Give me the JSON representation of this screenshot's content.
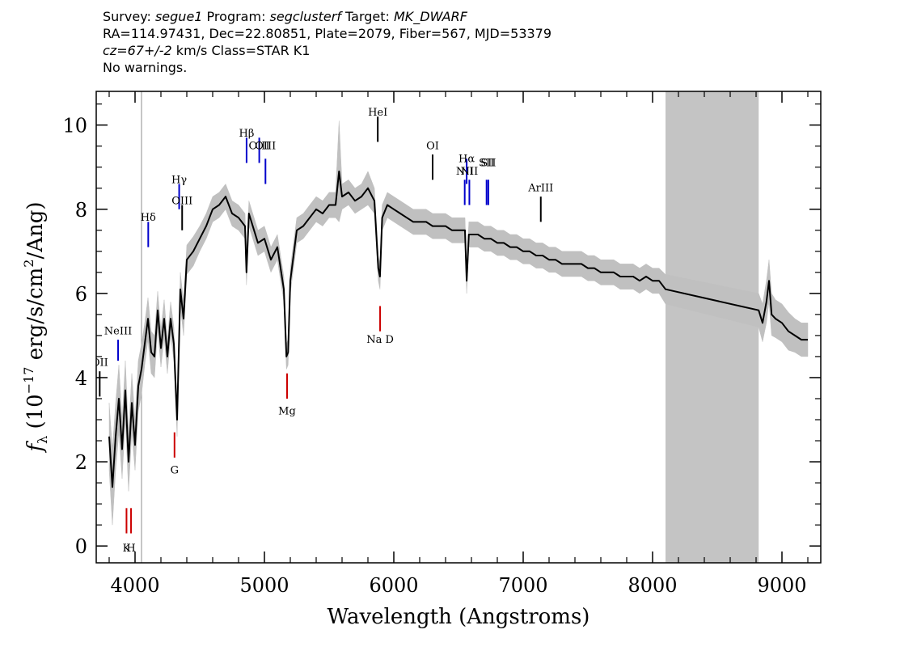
{
  "header": {
    "line1": {
      "survey_label": "Survey: ",
      "survey": "segue1",
      "program_label": " Program: ",
      "program": "segclusterf",
      "target_label": " Target: ",
      "target": "MK_DWARF"
    },
    "line2": "RA=114.97431, Dec=22.80851, Plate=2079, Fiber=567, MJD=53379",
    "line3": {
      "cz": "cz=67+/-2",
      "rest": " km/s Class=STAR K1"
    },
    "line4": "No warnings."
  },
  "colors": {
    "flux": "#000000",
    "error_band": "#c0c0c0",
    "masked_region": "#c4c4c4",
    "emission_line": "#0000cc",
    "absorption_line": "#cc0000",
    "other_line": "#000000"
  },
  "chart_data": {
    "type": "line",
    "xlabel": "Wavelength (Angstroms)",
    "ylabel_main": "f",
    "ylabel_sub": "λ",
    "ylabel_rest": " (10",
    "ylabel_exp": "−17",
    "ylabel_units": " erg/s/cm",
    "ylabel_exp2": "2",
    "ylabel_end": "/Ang)",
    "xlim": [
      3700,
      9300
    ],
    "ylim": [
      -0.4,
      10.8
    ],
    "xticks": [
      4000,
      5000,
      6000,
      7000,
      8000,
      9000
    ],
    "xtick_labels": [
      "4000",
      "5000",
      "6000",
      "7000",
      "8000",
      "9000"
    ],
    "yticks": [
      0,
      2,
      4,
      6,
      8,
      10
    ],
    "ytick_labels": [
      "0",
      "2",
      "4",
      "6",
      "8",
      "10"
    ],
    "masked_region": [
      8100,
      8820
    ],
    "vertical_line_x": 4050,
    "spectrum": {
      "x": [
        3800,
        3825,
        3850,
        3875,
        3900,
        3925,
        3950,
        3975,
        4000,
        4025,
        4050,
        4075,
        4100,
        4125,
        4150,
        4175,
        4200,
        4225,
        4250,
        4275,
        4300,
        4325,
        4350,
        4375,
        4400,
        4450,
        4500,
        4550,
        4600,
        4650,
        4700,
        4750,
        4800,
        4850,
        4861,
        4880,
        4900,
        4950,
        5000,
        5050,
        5100,
        5150,
        5170,
        5183,
        5200,
        5250,
        5300,
        5350,
        5400,
        5450,
        5500,
        5550,
        5577,
        5600,
        5650,
        5700,
        5750,
        5800,
        5850,
        5880,
        5893,
        5910,
        5950,
        6000,
        6050,
        6100,
        6150,
        6200,
        6250,
        6300,
        6350,
        6400,
        6450,
        6500,
        6550,
        6563,
        6580,
        6600,
        6650,
        6700,
        6750,
        6800,
        6850,
        6900,
        6950,
        7000,
        7050,
        7100,
        7150,
        7200,
        7250,
        7300,
        7350,
        7400,
        7450,
        7500,
        7550,
        7600,
        7650,
        7700,
        7750,
        7800,
        7850,
        7900,
        7950,
        8000,
        8050,
        8100,
        8820,
        8850,
        8880,
        8900,
        8920,
        8950,
        9000,
        9050,
        9100,
        9150,
        9200
      ],
      "y": [
        2.6,
        1.4,
        2.6,
        3.5,
        2.3,
        3.7,
        2.0,
        3.4,
        2.4,
        3.8,
        4.2,
        4.8,
        5.4,
        4.6,
        4.5,
        5.6,
        4.7,
        5.4,
        4.5,
        5.4,
        4.8,
        3.0,
        6.1,
        5.4,
        6.8,
        7.0,
        7.3,
        7.6,
        8.0,
        8.1,
        8.3,
        7.9,
        7.8,
        7.6,
        6.5,
        7.9,
        7.7,
        7.2,
        7.3,
        6.8,
        7.1,
        6.1,
        4.5,
        4.6,
        6.3,
        7.5,
        7.6,
        7.8,
        8.0,
        7.9,
        8.1,
        8.1,
        8.9,
        8.3,
        8.4,
        8.2,
        8.3,
        8.5,
        8.2,
        6.6,
        6.4,
        7.8,
        8.1,
        8.0,
        7.9,
        7.8,
        7.7,
        7.7,
        7.7,
        7.6,
        7.6,
        7.6,
        7.5,
        7.5,
        7.5,
        6.3,
        7.4,
        7.4,
        7.4,
        7.3,
        7.3,
        7.2,
        7.2,
        7.1,
        7.1,
        7.0,
        7.0,
        6.9,
        6.9,
        6.8,
        6.8,
        6.7,
        6.7,
        6.7,
        6.7,
        6.6,
        6.6,
        6.5,
        6.5,
        6.5,
        6.4,
        6.4,
        6.4,
        6.3,
        6.4,
        6.3,
        6.3,
        6.1,
        5.6,
        5.3,
        5.8,
        6.3,
        5.5,
        5.4,
        5.3,
        5.1,
        5.0,
        4.9,
        4.9
      ],
      "error": [
        0.8,
        0.9,
        0.8,
        0.8,
        0.7,
        0.7,
        0.7,
        0.7,
        0.6,
        0.6,
        0.6,
        0.5,
        0.5,
        0.5,
        0.5,
        0.45,
        0.45,
        0.45,
        0.4,
        0.4,
        0.4,
        0.4,
        0.4,
        0.4,
        0.35,
        0.35,
        0.3,
        0.3,
        0.3,
        0.3,
        0.3,
        0.3,
        0.3,
        0.3,
        0.3,
        0.3,
        0.3,
        0.3,
        0.3,
        0.3,
        0.3,
        0.3,
        0.3,
        0.3,
        0.3,
        0.3,
        0.3,
        0.3,
        0.3,
        0.3,
        0.3,
        0.3,
        1.2,
        0.3,
        0.3,
        0.3,
        0.3,
        0.4,
        0.3,
        0.3,
        0.3,
        0.3,
        0.3,
        0.3,
        0.3,
        0.3,
        0.3,
        0.3,
        0.3,
        0.3,
        0.3,
        0.3,
        0.3,
        0.3,
        0.3,
        0.3,
        0.3,
        0.3,
        0.3,
        0.3,
        0.3,
        0.3,
        0.3,
        0.3,
        0.3,
        0.3,
        0.3,
        0.3,
        0.3,
        0.3,
        0.3,
        0.3,
        0.3,
        0.3,
        0.3,
        0.3,
        0.3,
        0.3,
        0.3,
        0.3,
        0.3,
        0.3,
        0.3,
        0.3,
        0.3,
        0.3,
        0.3,
        0.35,
        0.4,
        0.45,
        0.5,
        0.5,
        0.5,
        0.45,
        0.45,
        0.45,
        0.4,
        0.4,
        0.4
      ]
    },
    "lines": [
      {
        "label": "OII",
        "x": 3727,
        "y_label": 4.35,
        "y_top": 4.15,
        "y_bot": 3.55,
        "kind": "other"
      },
      {
        "label": "NeIII",
        "x": 3869,
        "y_label": 5.1,
        "y_top": 4.9,
        "y_bot": 4.4,
        "kind": "emission"
      },
      {
        "label": "K",
        "x": 3934,
        "y_label": -0.05,
        "y_top": 0.9,
        "y_bot": 0.3,
        "kind": "absorption"
      },
      {
        "label": "H",
        "x": 3969,
        "y_label": -0.05,
        "y_top": 0.9,
        "y_bot": 0.3,
        "kind": "absorption"
      },
      {
        "label": "Hδ",
        "x": 4102,
        "y_label": 7.8,
        "y_top": 7.7,
        "y_bot": 7.1,
        "kind": "emission"
      },
      {
        "label": "G",
        "x": 4305,
        "y_label": 1.8,
        "y_top": 2.7,
        "y_bot": 2.1,
        "kind": "absorption"
      },
      {
        "label": "Hγ",
        "x": 4341,
        "y_label": 8.7,
        "y_top": 8.6,
        "y_bot": 8.0,
        "kind": "emission"
      },
      {
        "label": "OIII",
        "x": 4364,
        "y_label": 8.2,
        "y_top": 8.1,
        "y_bot": 7.5,
        "kind": "other"
      },
      {
        "label": "Hβ",
        "x": 4862,
        "y_label": 9.8,
        "y_top": 9.7,
        "y_bot": 9.1,
        "kind": "emission"
      },
      {
        "label": "OIII",
        "x": 4960,
        "y_label": 9.5,
        "y_top": 9.7,
        "y_bot": 9.1,
        "kind": "emission"
      },
      {
        "label": "OIII",
        "x": 5008,
        "y_label": 9.5,
        "y_top": 9.2,
        "y_bot": 8.6,
        "kind": "emission"
      },
      {
        "label": "Mg",
        "x": 5175,
        "y_label": 3.2,
        "y_top": 4.1,
        "y_bot": 3.5,
        "kind": "absorption"
      },
      {
        "label": "HeI",
        "x": 5876,
        "y_label": 10.3,
        "y_top": 10.2,
        "y_bot": 9.6,
        "kind": "other"
      },
      {
        "label": "Na D",
        "x": 5894,
        "y_label": 4.9,
        "y_top": 5.7,
        "y_bot": 5.1,
        "kind": "absorption"
      },
      {
        "label": "OI",
        "x": 6300,
        "y_label": 9.5,
        "y_top": 9.3,
        "y_bot": 8.7,
        "kind": "other"
      },
      {
        "label": "NII",
        "x": 6548,
        "y_label": 8.9,
        "y_top": 8.7,
        "y_bot": 8.1,
        "kind": "emission"
      },
      {
        "label": "Hα",
        "x": 6563,
        "y_label": 9.2,
        "y_top": 9.2,
        "y_bot": 8.6,
        "kind": "emission"
      },
      {
        "label": "NII",
        "x": 6584,
        "y_label": 8.9,
        "y_top": 8.7,
        "y_bot": 8.1,
        "kind": "emission"
      },
      {
        "label": "SII",
        "x": 6717,
        "y_label": 9.1,
        "y_top": 8.7,
        "y_bot": 8.1,
        "kind": "emission"
      },
      {
        "label": "SII",
        "x": 6731,
        "y_label": 9.1,
        "y_top": 8.7,
        "y_bot": 8.1,
        "kind": "emission"
      },
      {
        "label": "ArIII",
        "x": 7136,
        "y_label": 8.5,
        "y_top": 8.3,
        "y_bot": 7.7,
        "kind": "other"
      }
    ]
  }
}
